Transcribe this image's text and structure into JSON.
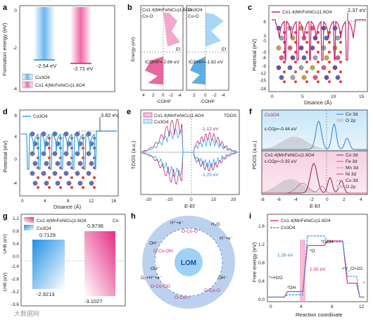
{
  "panels": {
    "a": {
      "label": "a",
      "ylabel": "Formation energy (eV)",
      "yticks": [
        "0",
        "-2",
        "-4"
      ],
      "values": [
        "-2.54 eV",
        "-2.71 eV"
      ],
      "legend": [
        "Co3O4",
        "Co1.4(MnFeNiCu)1.6O4"
      ],
      "colors": {
        "co3o4": "#5aaee8",
        "hea": "#e8559a"
      }
    },
    "b": {
      "label": "b",
      "left_title": "Co1.4(MnFeNiCu)1.6O4",
      "left_sub": "Co-O",
      "right_title": "Co3O4",
      "right_sub": "Co-O",
      "ylabel": "Energy (eV)",
      "left_icohp": "ICOHP=-2.66 eV",
      "right_icohp": "ICOHP=-1.82 eV",
      "xlabel": "-COHP",
      "ef": "Ef",
      "left_xticks": [
        "4",
        "2",
        "0",
        "-2",
        "-4"
      ],
      "right_xticks": [
        "2",
        "0",
        "-2",
        "-4"
      ]
    },
    "c": {
      "label": "c",
      "title": "Co1.4(MnFeNiCu)1.6O4",
      "value": "2.37 eV",
      "ylabel": "Potential (eV)",
      "xlabel": "Disance (Å)",
      "yticks": [
        "6",
        "0",
        "-6",
        "-12",
        "-18"
      ],
      "ytick_extra": [
        "3",
        "-3",
        "-9",
        "-15"
      ],
      "xticks": [
        "0",
        "5",
        "10",
        "15"
      ]
    },
    "d": {
      "label": "d",
      "title": "Co3O4",
      "value": "3.82 eV",
      "ylabel": "Potential (eV)",
      "xlabel": "Disance (Å)",
      "yticks": [
        "8",
        "4",
        "0",
        "-4"
      ],
      "xticks": [
        "0",
        "4",
        "8",
        "12",
        "16"
      ]
    },
    "e": {
      "label": "e",
      "legend": [
        "Co1.4(MnFeNiCu)1.6O4",
        "Co3O4"
      ],
      "tdos": "TDOS",
      "v1": "-1.12 eV",
      "v2": "-1.25 eV",
      "ylabel": "TDOS (a.u.)",
      "xlabel": "E-Ef",
      "xticks": [
        "-20",
        "-10",
        "0",
        "10",
        "20"
      ]
    },
    "f": {
      "label": "f",
      "top_title": "Co3O4",
      "top_eps": "ε-O2p=-0.44 eV",
      "top_legend": [
        "Co 3d",
        "O 2p"
      ],
      "bottom_title": "Co1.4(MnFeNiCu)1.6O4",
      "bottom_eps": "ε-O2p=-0.35 eV",
      "bottom_legend": [
        "Co 3d",
        "Fe 3d",
        "Mn 3d",
        "Ni 3d",
        "Cu 3d",
        "O 2p"
      ],
      "ylabel": "PDOS (a.u.)",
      "xlabel": "E-Ef",
      "xticks": [
        "-8",
        "-6",
        "-4",
        "-2",
        "0",
        "2",
        "4"
      ]
    },
    "g": {
      "label": "g",
      "legend": [
        "Co1.4(MnFeNiCu)1.6O4",
        "Co3O4"
      ],
      "co": "Co",
      "uhb_label": "UHB (eV)",
      "lhb_label": "LHB (eV)",
      "left_top": "0.7129",
      "left_bottom": "-2.9213",
      "right_top": "0.9736",
      "right_bottom": "-3.1027",
      "yticks_top": [
        "1.2",
        "0.8",
        "0.4",
        "0.0"
      ],
      "yticks_bottom": [
        "-2.4",
        "-2.8",
        "-3.2",
        "-3.6"
      ]
    },
    "h": {
      "label": "h",
      "center": "LOM",
      "species": [
        "H⁺+e⁻",
        "O-Co-O",
        "H₂O",
        "H⁺+e⁻",
        "OH⁻",
        "O-Co-OH",
        "OH⁻",
        "O₂+H⁺+e⁻",
        "O-Co-OO",
        "O-Co-□",
        "O-Co-O",
        "OH⁻"
      ]
    },
    "i": {
      "label": "i",
      "legend": [
        "Co1.4(MnFeNiCu)1.6O4",
        "Co3O4"
      ],
      "ylabel": "Free energy (eV)",
      "xlabel": "Reaction coordinate",
      "ann": [
        "*+H2O",
        "*OH",
        "*O",
        "*OOH",
        "+V_O+O2",
        "*",
        "1.28 eV",
        "1.00 eV"
      ],
      "yticks": [
        "0.0",
        "0.4",
        "0.8",
        "1.2",
        "1.6"
      ],
      "xticks": [
        "0",
        "4",
        "8",
        "12"
      ],
      "series": [
        {
          "name": "Co1.4(MnFeNiCu)1.6O4",
          "values": [
            0.0,
            0.12,
            1.12,
            1.22,
            0.3,
            0.0
          ]
        },
        {
          "name": "Co3O4",
          "values": [
            0.0,
            0.05,
            1.33,
            1.2,
            0.45,
            0.0
          ]
        }
      ]
    }
  },
  "watermark": "大数据网"
}
